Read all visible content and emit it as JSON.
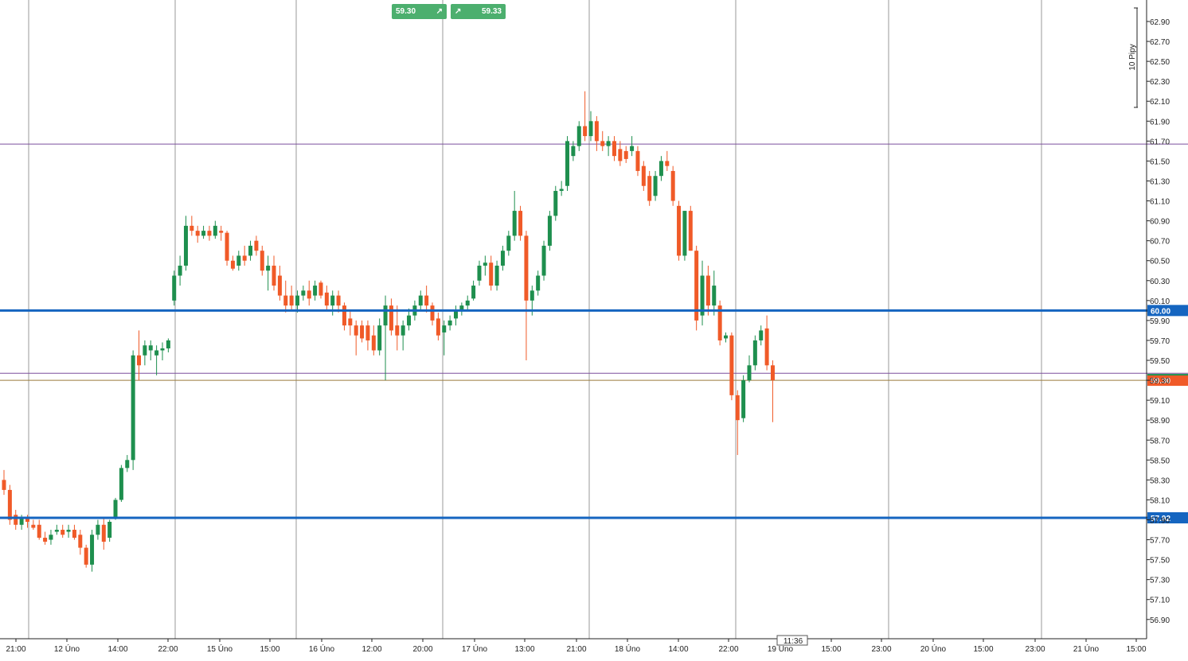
{
  "trade_buttons": {
    "sell_price": "59.30",
    "buy_price": "59.33",
    "sell_icon": "arrow-up-right-icon",
    "buy_icon": "arrow-up-right-icon",
    "color": "#4caf6e"
  },
  "scale_label": "10 Pipy",
  "time_marker": "11:36",
  "chart_data": {
    "type": "candlestick",
    "ylim": [
      56.7,
      63.0
    ],
    "y_ticks": [
      "62.90",
      "62.70",
      "62.50",
      "62.30",
      "62.10",
      "61.90",
      "61.70",
      "61.50",
      "61.30",
      "61.10",
      "60.90",
      "60.70",
      "60.50",
      "60.30",
      "60.10",
      "59.90",
      "59.70",
      "59.50",
      "59.30",
      "59.10",
      "58.90",
      "58.70",
      "58.50",
      "58.30",
      "58.10",
      "57.90",
      "57.70",
      "57.50",
      "57.30",
      "57.10",
      "56.90"
    ],
    "x_ticks": [
      "21:00",
      "12 Úno",
      "14:00",
      "22:00",
      "15 Úno",
      "15:00",
      "16 Úno",
      "12:00",
      "20:00",
      "17 Úno",
      "13:00",
      "21:00",
      "18 Úno",
      "14:00",
      "22:00",
      "19 Úno",
      "15:00",
      "23:00",
      "20 Úno",
      "15:00",
      "23:00",
      "21 Úno",
      "15:00"
    ],
    "support_resistance_lines": [
      {
        "price": 60.0,
        "label": "60.00",
        "color": "#1565c0"
      },
      {
        "price": 57.92,
        "label": "57.92",
        "color": "#1565c0"
      }
    ],
    "reference_lines": [
      {
        "price": 61.67,
        "color": "#7b4f9d"
      },
      {
        "price": 59.37,
        "color": "#7b4f9d"
      },
      {
        "price": 59.3,
        "color": "#9a7b3c"
      }
    ],
    "current_price": {
      "value": 59.3,
      "label": "59.30",
      "color": "#f05a28"
    },
    "colors": {
      "up": "#1e8f4e",
      "down": "#f05a28"
    },
    "candles": [
      [
        58.3,
        58.4,
        58.15,
        58.2
      ],
      [
        58.2,
        58.25,
        57.85,
        57.9
      ],
      [
        57.95,
        58.0,
        57.8,
        57.85
      ],
      [
        57.85,
        57.95,
        57.8,
        57.92
      ],
      [
        57.92,
        57.95,
        57.82,
        57.88
      ],
      [
        57.85,
        57.9,
        57.8,
        57.82
      ],
      [
        57.85,
        57.9,
        57.7,
        57.72
      ],
      [
        57.72,
        57.78,
        57.65,
        57.68
      ],
      [
        57.7,
        57.8,
        57.65,
        57.75
      ],
      [
        57.78,
        57.85,
        57.75,
        57.8
      ],
      [
        57.8,
        57.85,
        57.72,
        57.75
      ],
      [
        57.78,
        57.85,
        57.72,
        57.8
      ],
      [
        57.8,
        57.85,
        57.7,
        57.72
      ],
      [
        57.75,
        57.8,
        57.55,
        57.62
      ],
      [
        57.62,
        57.65,
        57.42,
        57.45
      ],
      [
        57.45,
        57.8,
        57.38,
        57.75
      ],
      [
        57.75,
        57.9,
        57.7,
        57.85
      ],
      [
        57.85,
        57.92,
        57.6,
        57.68
      ],
      [
        57.72,
        57.9,
        57.68,
        57.88
      ],
      [
        57.92,
        58.12,
        57.9,
        58.1
      ],
      [
        58.1,
        58.45,
        58.08,
        58.42
      ],
      [
        58.42,
        58.55,
        58.38,
        58.5
      ],
      [
        58.5,
        59.6,
        58.4,
        59.55
      ],
      [
        59.55,
        59.8,
        59.3,
        59.45
      ],
      [
        59.55,
        59.7,
        59.45,
        59.65
      ],
      [
        59.6,
        59.7,
        59.5,
        59.65
      ],
      [
        59.55,
        59.65,
        59.35,
        59.6
      ],
      [
        59.6,
        59.68,
        59.5,
        59.62
      ],
      [
        59.62,
        59.72,
        59.58,
        59.7
      ],
      [
        60.1,
        60.4,
        60.05,
        60.35
      ],
      [
        60.35,
        60.55,
        60.25,
        60.45
      ],
      [
        60.45,
        60.95,
        60.4,
        60.85
      ],
      [
        60.85,
        60.95,
        60.75,
        60.8
      ],
      [
        60.8,
        60.85,
        60.68,
        60.75
      ],
      [
        60.75,
        60.85,
        60.72,
        60.8
      ],
      [
        60.8,
        60.85,
        60.7,
        60.75
      ],
      [
        60.75,
        60.9,
        60.72,
        60.85
      ],
      [
        60.8,
        60.85,
        60.7,
        60.78
      ],
      [
        60.78,
        60.8,
        60.45,
        60.5
      ],
      [
        60.5,
        60.55,
        60.4,
        60.42
      ],
      [
        60.45,
        60.6,
        60.4,
        60.55
      ],
      [
        60.55,
        60.65,
        60.45,
        60.5
      ],
      [
        60.55,
        60.7,
        60.5,
        60.65
      ],
      [
        60.7,
        60.75,
        60.55,
        60.6
      ],
      [
        60.6,
        60.65,
        60.35,
        60.4
      ],
      [
        60.4,
        60.55,
        60.2,
        60.45
      ],
      [
        60.45,
        60.55,
        60.2,
        60.25
      ],
      [
        60.35,
        60.45,
        60.1,
        60.15
      ],
      [
        60.15,
        60.3,
        59.98,
        60.05
      ],
      [
        60.15,
        60.25,
        60.0,
        60.05
      ],
      [
        60.05,
        60.2,
        59.98,
        60.15
      ],
      [
        60.15,
        60.25,
        60.1,
        60.2
      ],
      [
        60.2,
        60.3,
        60.05,
        60.12
      ],
      [
        60.15,
        60.3,
        60.1,
        60.25
      ],
      [
        60.28,
        60.3,
        60.12,
        60.15
      ],
      [
        60.18,
        60.25,
        60.0,
        60.05
      ],
      [
        60.05,
        60.2,
        59.95,
        60.15
      ],
      [
        60.15,
        60.2,
        59.98,
        60.05
      ],
      [
        60.05,
        60.08,
        59.8,
        59.85
      ],
      [
        59.92,
        60.0,
        59.75,
        59.85
      ],
      [
        59.85,
        59.9,
        59.55,
        59.75
      ],
      [
        59.85,
        59.9,
        59.68,
        59.72
      ],
      [
        59.85,
        59.9,
        59.6,
        59.7
      ],
      [
        59.75,
        59.85,
        59.55,
        59.6
      ],
      [
        59.6,
        59.92,
        59.55,
        59.85
      ],
      [
        59.85,
        60.15,
        59.3,
        60.05
      ],
      [
        60.05,
        60.12,
        59.75,
        59.8
      ],
      [
        59.85,
        60.05,
        59.6,
        59.75
      ],
      [
        59.75,
        59.9,
        59.6,
        59.85
      ],
      [
        59.85,
        60.02,
        59.8,
        59.95
      ],
      [
        59.95,
        60.1,
        59.9,
        60.05
      ],
      [
        60.05,
        60.2,
        60.0,
        60.15
      ],
      [
        60.15,
        60.25,
        59.98,
        60.05
      ],
      [
        60.05,
        60.08,
        59.85,
        59.9
      ],
      [
        59.92,
        59.98,
        59.7,
        59.75
      ],
      [
        59.78,
        59.9,
        59.55,
        59.85
      ],
      [
        59.85,
        59.95,
        59.8,
        59.9
      ],
      [
        59.92,
        60.05,
        59.85,
        60.0
      ],
      [
        60.0,
        60.08,
        59.95,
        60.05
      ],
      [
        60.05,
        60.15,
        60.0,
        60.1
      ],
      [
        60.12,
        60.3,
        60.1,
        60.25
      ],
      [
        60.3,
        60.5,
        60.25,
        60.45
      ],
      [
        60.45,
        60.55,
        60.35,
        60.48
      ],
      [
        60.48,
        60.55,
        60.2,
        60.25
      ],
      [
        60.25,
        60.5,
        60.2,
        60.45
      ],
      [
        60.45,
        60.65,
        60.4,
        60.6
      ],
      [
        60.6,
        60.8,
        60.55,
        60.75
      ],
      [
        60.75,
        61.2,
        60.7,
        61.0
      ],
      [
        61.0,
        61.05,
        60.7,
        60.75
      ],
      [
        60.75,
        60.8,
        59.5,
        60.1
      ],
      [
        60.1,
        60.25,
        59.95,
        60.2
      ],
      [
        60.2,
        60.4,
        60.15,
        60.35
      ],
      [
        60.35,
        60.7,
        60.3,
        60.65
      ],
      [
        60.65,
        61.0,
        60.6,
        60.95
      ],
      [
        60.95,
        61.25,
        60.9,
        61.2
      ],
      [
        61.2,
        61.3,
        61.15,
        61.22
      ],
      [
        61.25,
        61.75,
        61.2,
        61.7
      ],
      [
        61.55,
        61.7,
        61.5,
        61.65
      ],
      [
        61.65,
        61.9,
        61.6,
        61.85
      ],
      [
        61.85,
        62.2,
        61.7,
        61.75
      ],
      [
        61.75,
        62.0,
        61.7,
        61.9
      ],
      [
        61.9,
        61.95,
        61.6,
        61.7
      ],
      [
        61.7,
        61.8,
        61.6,
        61.65
      ],
      [
        61.65,
        61.75,
        61.55,
        61.7
      ],
      [
        61.7,
        61.75,
        61.5,
        61.55
      ],
      [
        61.62,
        61.7,
        61.45,
        61.5
      ],
      [
        61.6,
        61.65,
        61.48,
        61.52
      ],
      [
        61.6,
        61.75,
        61.55,
        61.65
      ],
      [
        61.6,
        61.65,
        61.35,
        61.4
      ],
      [
        61.45,
        61.5,
        61.2,
        61.25
      ],
      [
        61.35,
        61.4,
        61.05,
        61.1
      ],
      [
        61.15,
        61.4,
        61.1,
        61.35
      ],
      [
        61.35,
        61.55,
        61.3,
        61.5
      ],
      [
        61.5,
        61.6,
        61.4,
        61.45
      ],
      [
        61.4,
        61.45,
        61.05,
        61.1
      ],
      [
        61.05,
        61.1,
        60.5,
        60.55
      ],
      [
        60.55,
        61.0,
        60.5,
        61.0
      ],
      [
        61.0,
        61.05,
        60.6,
        60.6
      ],
      [
        60.6,
        60.65,
        59.8,
        59.9
      ],
      [
        59.95,
        60.5,
        59.85,
        60.35
      ],
      [
        60.35,
        60.45,
        59.95,
        60.05
      ],
      [
        60.05,
        60.4,
        59.95,
        60.25
      ],
      [
        60.05,
        60.1,
        59.65,
        59.7
      ],
      [
        59.72,
        59.78,
        59.68,
        59.75
      ],
      [
        59.75,
        59.78,
        59.1,
        59.15
      ],
      [
        59.15,
        59.2,
        58.55,
        58.9
      ],
      [
        58.92,
        59.35,
        58.88,
        59.3
      ],
      [
        59.3,
        59.55,
        59.28,
        59.45
      ],
      [
        59.45,
        59.75,
        59.4,
        59.7
      ],
      [
        59.7,
        59.85,
        59.65,
        59.8
      ],
      [
        59.82,
        59.95,
        59.4,
        59.45
      ],
      [
        59.45,
        59.5,
        58.88,
        59.3
      ]
    ]
  }
}
